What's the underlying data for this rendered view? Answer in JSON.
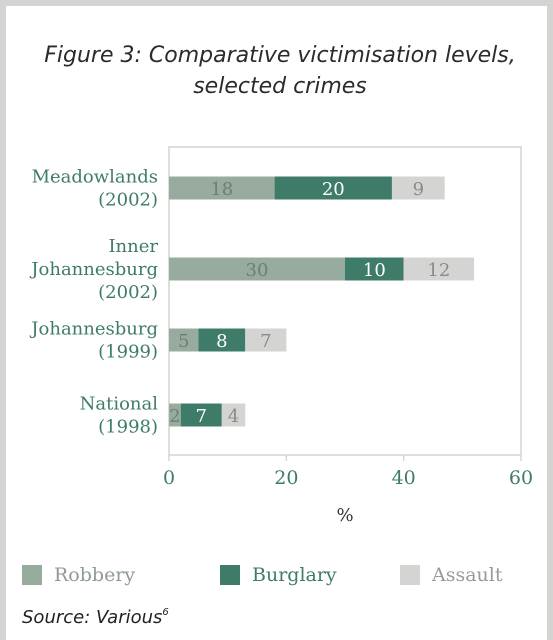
{
  "colors": {
    "robbery": "#98ab9f",
    "burglary": "#3e7b68",
    "assault": "#d4d4d2",
    "label_green": "#3e7b68",
    "axis_text": "#3e7b68"
  },
  "source": {
    "text": "Source: Various",
    "note": "6"
  },
  "chart_data": {
    "type": "bar",
    "orientation": "horizontal",
    "stacked": true,
    "title": "Figure 3: Comparative victimisation levels, selected crimes",
    "xlabel": "%",
    "ylabel": "",
    "xlim": [
      0,
      60
    ],
    "xticks": [
      "0",
      "20",
      "40",
      "60"
    ],
    "grid": false,
    "legend_position": "bottom",
    "categories": [
      [
        "Meadowlands",
        "(2002)"
      ],
      [
        "Inner",
        "Johannesburg",
        "(2002)"
      ],
      [
        "Johannesburg",
        "(1999)"
      ],
      [
        "National",
        "(1998)"
      ]
    ],
    "series": [
      {
        "name": "Robbery",
        "values": [
          18,
          30,
          5,
          2
        ]
      },
      {
        "name": "Burglary",
        "values": [
          20,
          10,
          8,
          7
        ]
      },
      {
        "name": "Assault",
        "values": [
          9,
          12,
          7,
          4
        ]
      }
    ]
  }
}
